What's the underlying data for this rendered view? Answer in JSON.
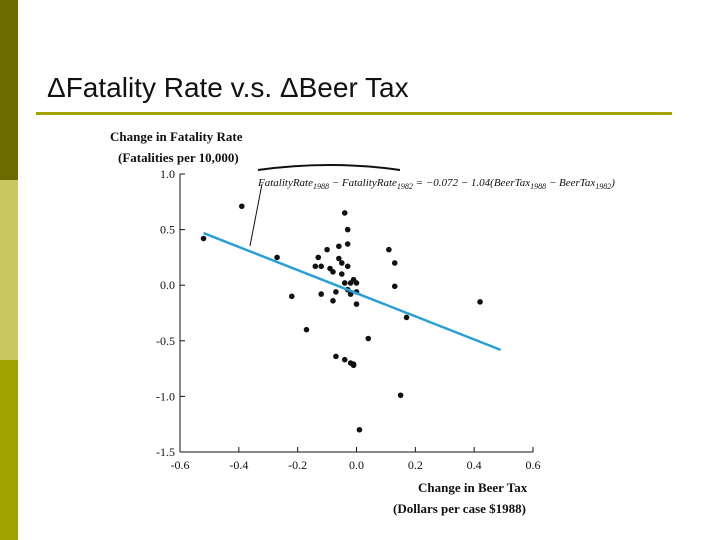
{
  "slide": {
    "title": "ΔFatality Rate v.s. ΔBeer Tax",
    "accent_colors": [
      "#6b6b00",
      "#c8c860",
      "#a3a300"
    ]
  },
  "chart_data": {
    "type": "scatter",
    "ylabel_line1": "Change in Fatality Rate",
    "ylabel_line2": "(Fatalities per 10,000)",
    "xlabel_line1": "Change in Beer Tax",
    "xlabel_line2": "(Dollars per case $1988)",
    "xlim": [
      -0.6,
      0.6
    ],
    "ylim": [
      -1.5,
      1.0
    ],
    "xticks": [
      "-0.6",
      "-0.4",
      "-0.2",
      "0.0",
      "0.2",
      "0.4",
      "0.6"
    ],
    "yticks": [
      "1.0",
      "0.5",
      "0.0",
      "-0.5",
      "-1.0",
      "-1.5"
    ],
    "grid": false,
    "point_color": "#111111",
    "line_color": "#2a9fd6",
    "regression": {
      "intercept": -0.072,
      "slope": -1.04,
      "x_range": [
        -0.52,
        0.49
      ]
    },
    "equation": {
      "p1": "FatalityRate",
      "s1": "1988",
      "p2": " − FatalityRate",
      "s2": "1982",
      "p3": " = −0.072 − 1.04(BeerTax",
      "s3": "1988",
      "p4": " − BeerTax",
      "s4": "1982",
      "p5": ")"
    },
    "points": [
      [
        -0.52,
        0.42
      ],
      [
        -0.39,
        0.71
      ],
      [
        -0.27,
        0.25
      ],
      [
        -0.22,
        -0.1
      ],
      [
        -0.17,
        -0.4
      ],
      [
        -0.14,
        0.17
      ],
      [
        -0.13,
        0.25
      ],
      [
        -0.12,
        0.17
      ],
      [
        -0.12,
        -0.08
      ],
      [
        -0.1,
        0.32
      ],
      [
        -0.09,
        0.15
      ],
      [
        -0.08,
        -0.14
      ],
      [
        -0.08,
        0.12
      ],
      [
        -0.07,
        -0.64
      ],
      [
        -0.07,
        -0.06
      ],
      [
        -0.06,
        0.35
      ],
      [
        -0.06,
        0.24
      ],
      [
        -0.05,
        0.1
      ],
      [
        -0.05,
        0.2
      ],
      [
        -0.04,
        0.65
      ],
      [
        -0.04,
        0.02
      ],
      [
        -0.04,
        -0.67
      ],
      [
        -0.03,
        0.5
      ],
      [
        -0.03,
        0.37
      ],
      [
        -0.03,
        0.17
      ],
      [
        -0.03,
        -0.04
      ],
      [
        -0.02,
        0.02
      ],
      [
        -0.02,
        -0.08
      ],
      [
        -0.02,
        -0.7
      ],
      [
        -0.01,
        0.05
      ],
      [
        -0.01,
        -0.72
      ],
      [
        -0.01,
        -0.71
      ],
      [
        0.0,
        -0.06
      ],
      [
        0.0,
        -0.17
      ],
      [
        0.0,
        0.02
      ],
      [
        0.01,
        -1.3
      ],
      [
        0.04,
        -0.48
      ],
      [
        0.11,
        0.32
      ],
      [
        0.13,
        0.2
      ],
      [
        0.13,
        -0.01
      ],
      [
        0.15,
        -0.99
      ],
      [
        0.17,
        -0.29
      ],
      [
        0.42,
        -0.15
      ]
    ]
  }
}
